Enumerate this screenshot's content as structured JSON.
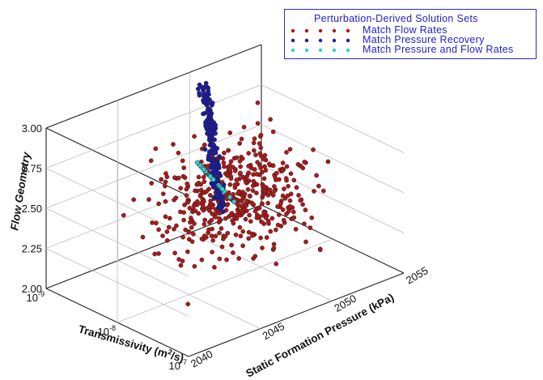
{
  "chart_data": {
    "type": "scatter",
    "title": "",
    "legend": {
      "title": "Perturbation-Derived Solution Sets",
      "placement": "top-right"
    },
    "axes": {
      "x": {
        "label": "Transmissivity (m²/s)",
        "scale": "log",
        "range": [
          1e-09,
          1e-07
        ],
        "ticks": [
          "10-9",
          "10-8",
          "10-7"
        ]
      },
      "y": {
        "label": "Static Formation Pressure (kPa)",
        "range": [
          2040,
          2055
        ],
        "ticks": [
          "2040",
          "2045",
          "2050",
          "2055"
        ]
      },
      "z": {
        "label": "Flow Geometry",
        "range": [
          2.0,
          3.0
        ],
        "ticks": [
          "2.00",
          "2.25",
          "2.50",
          "2.75",
          "3.00"
        ]
      }
    },
    "grid": true,
    "series": [
      {
        "name": "Match Flow Rates",
        "color": "#b01818",
        "count": 500,
        "transmissivity_range": [
          1e-09,
          1e-07
        ],
        "pressure_range": [
          2041,
          2055
        ],
        "flow_geometry_range": [
          2.0,
          3.0
        ]
      },
      {
        "name": "Match Pressure Recovery",
        "color": "#1c1ca6",
        "count": 220,
        "transmissivity_range": [
          1e-09,
          1e-08
        ],
        "pressure_range": [
          2046,
          2051
        ],
        "flow_geometry_range": [
          2.35,
          3.0
        ]
      },
      {
        "name": "Match Pressure and Flow Rates",
        "color": "#2fd0d0",
        "count": 30,
        "transmissivity_range": [
          3e-09,
          1e-08
        ],
        "pressure_range": [
          2047,
          2049
        ],
        "flow_geometry_range": [
          2.45,
          2.65
        ]
      }
    ]
  }
}
